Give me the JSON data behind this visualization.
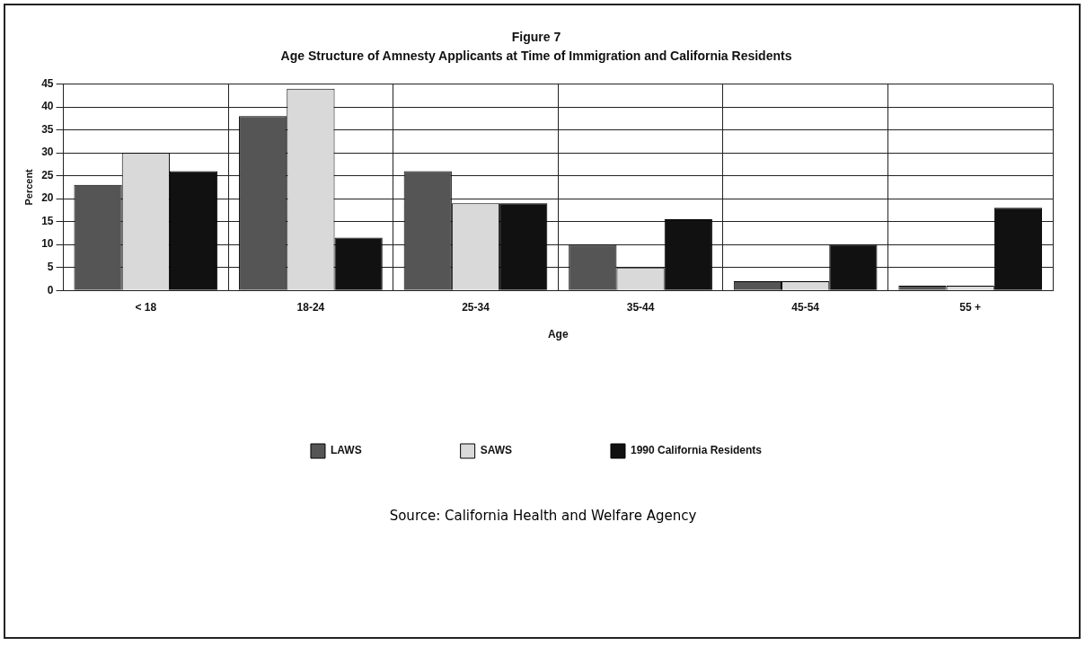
{
  "chart_data": {
    "type": "bar",
    "title": "Figure 7",
    "subtitle": "Age Structure of Amnesty Applicants at Time of Immigration and California Residents",
    "xlabel": "Age",
    "ylabel": "Percent",
    "categories": [
      "< 18",
      "18-24",
      "25-34",
      "35-44",
      "45-54",
      "55 +"
    ],
    "series": [
      {
        "name": "LAWS",
        "color": "#555555",
        "values": [
          23,
          38,
          26,
          10,
          2,
          1
        ]
      },
      {
        "name": "SAWS",
        "color": "#d9d9d9",
        "values": [
          30,
          44,
          19,
          5,
          2,
          1
        ]
      },
      {
        "name": "1990 California Residents",
        "color": "#111111",
        "values": [
          26,
          11.5,
          19,
          15.5,
          10,
          18
        ]
      }
    ],
    "ylim": [
      0,
      45
    ],
    "yticks": [
      0,
      5,
      10,
      15,
      20,
      25,
      30,
      35,
      40,
      45
    ],
    "grid": true,
    "legend": "bottom",
    "annotations": [
      "Source:  California Health and Welfare Agency"
    ]
  }
}
